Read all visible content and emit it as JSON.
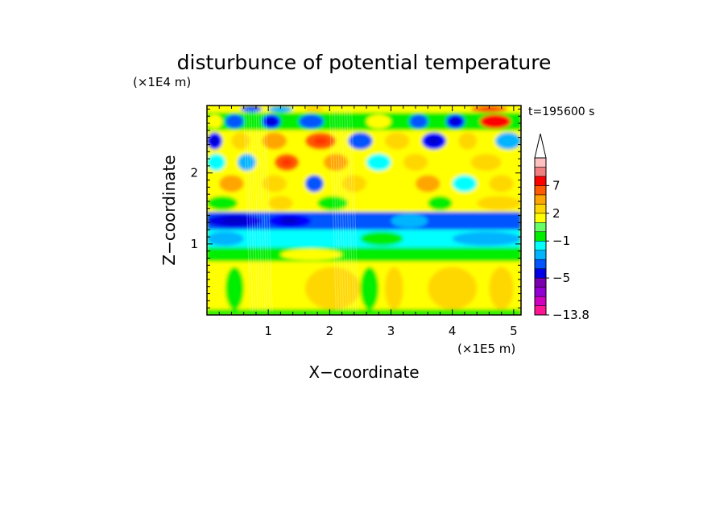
{
  "chart_data": {
    "type": "heatmap",
    "title": "disturbunce of potential temperature",
    "xlabel": "X−coordinate",
    "ylabel": "Z−coordinate",
    "x_unit_label": "(×1E5 m)",
    "y_unit_label": "(×1E4 m)",
    "time_label": "t=195600 s",
    "xlim": [
      0,
      5.12
    ],
    "ylim": [
      0,
      2.95
    ],
    "x_ticks": [
      "1",
      "2",
      "3",
      "4",
      "5"
    ],
    "y_ticks": [
      "1",
      "2"
    ],
    "colorbar": {
      "tick_labels": [
        "7",
        "2",
        "−1",
        "−5",
        "−13.8"
      ],
      "extend": "top",
      "colors": [
        "#ff1493",
        "#d000c0",
        "#9400d3",
        "#7b00b0",
        "#0000e6",
        "#0055ff",
        "#00b4ff",
        "#00ffff",
        "#00ee00",
        "#66ff66",
        "#ffff00",
        "#ffd700",
        "#ffa500",
        "#ff5a00",
        "#ff0000",
        "#f08080",
        "#ffc0c0"
      ]
    },
    "field_rows": [
      {
        "z": [
          2.85,
          2.95
        ],
        "level": "+1",
        "blobs": [
          [
            0.55,
            0.9,
            "-3"
          ],
          [
            1.0,
            1.4,
            "-2"
          ],
          [
            1.6,
            1.9,
            "+2"
          ],
          [
            4.3,
            4.9,
            "+4"
          ]
        ]
      },
      {
        "z": [
          2.6,
          2.85
        ],
        "level": "0",
        "blobs": [
          [
            0.0,
            0.25,
            "+1"
          ],
          [
            0.3,
            0.6,
            "-3"
          ],
          [
            0.9,
            1.2,
            "-4"
          ],
          [
            1.5,
            1.9,
            "-3"
          ],
          [
            2.6,
            3.0,
            "+1"
          ],
          [
            3.3,
            3.6,
            "-3"
          ],
          [
            3.9,
            4.2,
            "-4"
          ],
          [
            4.45,
            4.95,
            "+6"
          ]
        ]
      },
      {
        "z": [
          2.3,
          2.6
        ],
        "level": "+1",
        "blobs": [
          [
            0.0,
            0.25,
            "-4"
          ],
          [
            0.4,
            0.7,
            "+2"
          ],
          [
            0.9,
            1.3,
            "+3"
          ],
          [
            1.6,
            2.1,
            "+4"
          ],
          [
            2.3,
            2.7,
            "-3"
          ],
          [
            2.9,
            3.3,
            "+2"
          ],
          [
            3.5,
            3.9,
            "-4"
          ],
          [
            4.1,
            4.4,
            "+2"
          ],
          [
            4.7,
            5.12,
            "-2"
          ]
        ]
      },
      {
        "z": [
          2.0,
          2.3
        ],
        "level": "+1",
        "blobs": [
          [
            0.0,
            0.3,
            "-1"
          ],
          [
            0.5,
            0.8,
            "-2"
          ],
          [
            1.1,
            1.5,
            "+4"
          ],
          [
            1.9,
            2.3,
            "+3"
          ],
          [
            2.6,
            3.0,
            "-1"
          ],
          [
            3.2,
            3.6,
            "+2"
          ],
          [
            4.3,
            4.8,
            "+2"
          ]
        ]
      },
      {
        "z": [
          1.7,
          2.0
        ],
        "level": "+1",
        "blobs": [
          [
            0.2,
            0.6,
            "+3"
          ],
          [
            0.9,
            1.3,
            "+2"
          ],
          [
            1.6,
            1.9,
            "-3"
          ],
          [
            2.2,
            2.6,
            "+2"
          ],
          [
            3.4,
            3.8,
            "+3"
          ],
          [
            4.0,
            4.4,
            "-1"
          ],
          [
            4.6,
            5.0,
            "+2"
          ]
        ]
      },
      {
        "z": [
          1.45,
          1.7
        ],
        "level": "+1",
        "blobs": [
          [
            0.0,
            0.5,
            "0"
          ],
          [
            1.0,
            1.4,
            "+2"
          ],
          [
            1.8,
            2.3,
            "0"
          ],
          [
            2.7,
            3.2,
            "+1"
          ],
          [
            3.6,
            4.0,
            "0"
          ],
          [
            4.4,
            5.12,
            "+2"
          ]
        ]
      },
      {
        "z": [
          1.2,
          1.45
        ],
        "level": "-3",
        "blobs": [
          [
            0.0,
            0.9,
            "-5"
          ],
          [
            1.0,
            1.7,
            "-4"
          ],
          [
            2.0,
            2.6,
            "-3"
          ],
          [
            3.0,
            3.6,
            "-2"
          ]
        ]
      },
      {
        "z": [
          0.95,
          1.2
        ],
        "level": "-1",
        "blobs": [
          [
            0.0,
            0.6,
            "-2"
          ],
          [
            2.5,
            3.2,
            "0"
          ],
          [
            4.0,
            5.12,
            "-2"
          ]
        ]
      },
      {
        "z": [
          0.75,
          0.95
        ],
        "level": "0",
        "blobs": [
          [
            1.2,
            2.2,
            "+1"
          ]
        ]
      },
      {
        "z": [
          0.0,
          0.75
        ],
        "level": "+1",
        "blobs": [
          [
            1.6,
            2.5,
            "+2"
          ],
          [
            2.5,
            2.8,
            "0"
          ],
          [
            3.6,
            4.4,
            "+2"
          ],
          [
            4.6,
            5.0,
            "+2"
          ],
          [
            0.3,
            0.6,
            "0"
          ],
          [
            2.9,
            3.2,
            "+2"
          ]
        ]
      },
      {
        "z": [
          0.0,
          0.08
        ],
        "level": "0",
        "blobs": []
      }
    ]
  }
}
